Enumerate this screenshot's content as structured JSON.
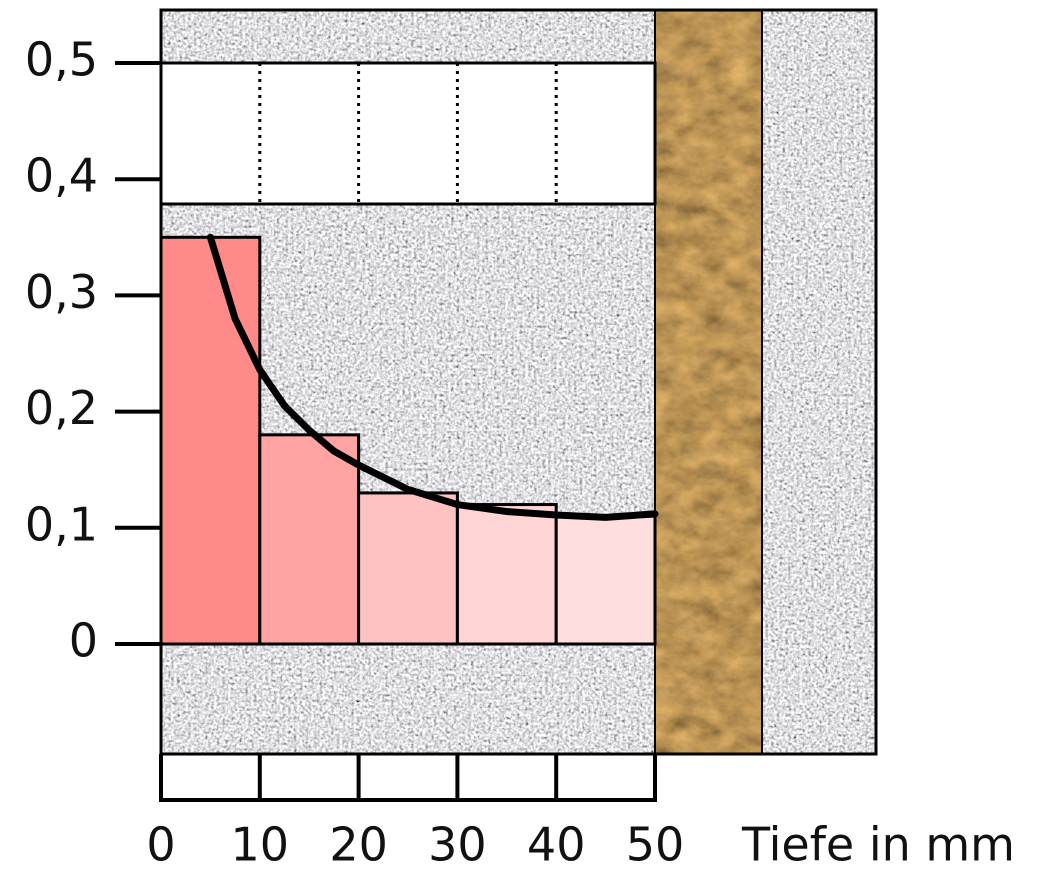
{
  "chart_data": {
    "type": "histogram",
    "bins": [
      0,
      10,
      20,
      30,
      40,
      50
    ],
    "values": [
      0.35,
      0.18,
      0.13,
      0.12,
      0.11
    ],
    "colors": [
      "#ff8a8a",
      "#ffa3a3",
      "#ffc2c2",
      "#ffd4d4",
      "#ffdede"
    ],
    "curve": {
      "x": [
        5,
        7.5,
        10,
        12.5,
        15,
        17.5,
        20,
        25,
        30,
        35,
        40,
        45,
        50
      ],
      "y": [
        0.35,
        0.28,
        0.236,
        0.205,
        0.184,
        0.166,
        0.154,
        0.133,
        0.12,
        0.114,
        0.111,
        0.109,
        0.112
      ],
      "color": "#000000"
    },
    "xlim": [
      0,
      50
    ],
    "xticks": [
      0,
      10,
      20,
      30,
      40,
      50
    ],
    "ylim": [
      0,
      0.5
    ],
    "yticks": [
      0,
      {
        "value": 0.1,
        "label": "0,1"
      },
      {
        "value": 0.2,
        "label": "0,2"
      },
      {
        "value": 0.3,
        "label": "0,3"
      },
      {
        "value": 0.4,
        "label": "0,4"
      },
      {
        "value": 0.5,
        "label": "0,5"
      }
    ],
    "xlabel": "Tiefe in mm"
  }
}
